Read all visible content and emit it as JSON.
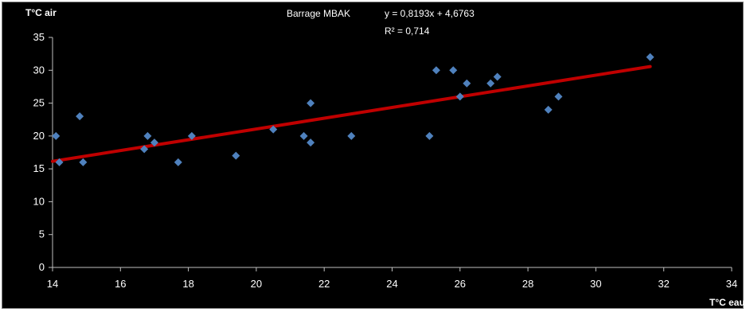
{
  "chart_data": {
    "type": "scatter",
    "title": "Barrage MBAK",
    "xlabel": "T°C eau",
    "ylabel": "T°C air",
    "xlim": [
      14,
      34
    ],
    "ylim": [
      0,
      35
    ],
    "x_ticks": [
      14,
      16,
      18,
      20,
      22,
      24,
      26,
      28,
      30,
      32,
      34
    ],
    "y_ticks": [
      0,
      5,
      10,
      15,
      20,
      25,
      30,
      35
    ],
    "grid": false,
    "legend": "none",
    "series": [
      {
        "color": "#4f81bd",
        "marker": "diamond",
        "points": [
          {
            "x": 14.1,
            "y": 20
          },
          {
            "x": 14.2,
            "y": 16
          },
          {
            "x": 14.8,
            "y": 23
          },
          {
            "x": 14.9,
            "y": 16
          },
          {
            "x": 16.7,
            "y": 18
          },
          {
            "x": 16.8,
            "y": 20
          },
          {
            "x": 17.0,
            "y": 19
          },
          {
            "x": 17.7,
            "y": 16
          },
          {
            "x": 18.1,
            "y": 20
          },
          {
            "x": 19.4,
            "y": 17
          },
          {
            "x": 20.5,
            "y": 21
          },
          {
            "x": 21.4,
            "y": 20
          },
          {
            "x": 21.6,
            "y": 25
          },
          {
            "x": 21.6,
            "y": 19
          },
          {
            "x": 22.8,
            "y": 20
          },
          {
            "x": 25.1,
            "y": 20
          },
          {
            "x": 25.3,
            "y": 30
          },
          {
            "x": 25.8,
            "y": 30
          },
          {
            "x": 26.0,
            "y": 26
          },
          {
            "x": 26.2,
            "y": 28
          },
          {
            "x": 26.9,
            "y": 28
          },
          {
            "x": 27.1,
            "y": 29
          },
          {
            "x": 28.6,
            "y": 24
          },
          {
            "x": 28.9,
            "y": 26
          },
          {
            "x": 31.6,
            "y": 32
          }
        ]
      }
    ],
    "trendline": {
      "type": "linear",
      "slope": 0.8193,
      "intercept": 4.6763,
      "x_range": [
        14,
        31.6
      ],
      "color": "#c00000",
      "equation_label": "y = 0,8193x + 4,6763",
      "r2_label": "R² = 0,714"
    }
  }
}
